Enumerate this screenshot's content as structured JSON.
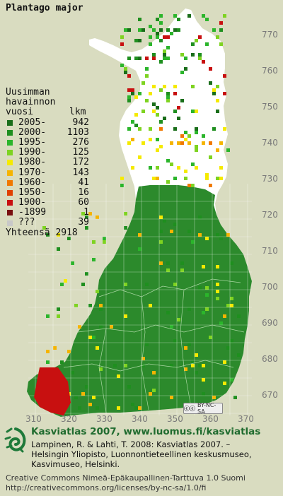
{
  "title": "Plantago major",
  "legend": {
    "header": [
      "Uusimman",
      "havainnon",
      "vuosi"
    ],
    "count_header": "lkm",
    "rows": [
      {
        "label": "2005-",
        "count": "942",
        "color": "#1a6e1a"
      },
      {
        "label": "2000-",
        "count": "1103",
        "color": "#1f8f1f"
      },
      {
        "label": "1995-",
        "count": "276",
        "color": "#2bb52b"
      },
      {
        "label": "1990-",
        "count": "125",
        "color": "#7ed321"
      },
      {
        "label": "1980-",
        "count": "172",
        "color": "#f5ea00"
      },
      {
        "label": "1970-",
        "count": "143",
        "color": "#f5b400"
      },
      {
        "label": "1960-",
        "count": "41",
        "color": "#f07800"
      },
      {
        "label": "1950-",
        "count": "16",
        "color": "#e04000"
      },
      {
        "label": "1900-",
        "count": "60",
        "color": "#c81010"
      },
      {
        "label": "-1899",
        "count": "1",
        "color": "#7a1010"
      },
      {
        "label": "???",
        "count": "39",
        "color": "#c8c8c8"
      }
    ],
    "total": "Yhteensä 2918"
  },
  "y_ticks": [
    "770",
    "760",
    "750",
    "740",
    "730",
    "720",
    "710",
    "700",
    "690",
    "680",
    "670"
  ],
  "x_ticks": [
    "310",
    "320",
    "330",
    "340",
    "350",
    "360",
    "370"
  ],
  "license_badge": "BY-NC-SA",
  "footer": {
    "headline": "Kasviatlas 2007, www.luomus.fi/kasviatlas",
    "citation": [
      "Lampinen, R. & Lahti, T. 2008: Kasviatlas 2007. –",
      "Helsingin Yliopisto, Luonnontieteellinen keskusmuseo,",
      "Kasvimuseo, Helsinki."
    ],
    "license_lines": [
      "Creative Commons Nimeä-Epäkaupallinen-Tarttuva 1.0 Suomi",
      "http://creativecommons.org/licenses/by-nc-sa/1.0/fi"
    ]
  }
}
